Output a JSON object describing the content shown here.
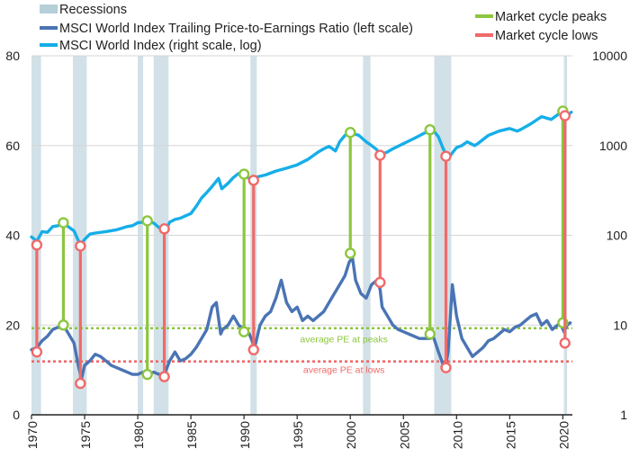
{
  "chart_data": {
    "type": "line",
    "title": "",
    "xlabel": "",
    "legend": {
      "placement": "top",
      "entries": [
        {
          "label": "Recessions",
          "color": "#b7cfd8"
        },
        {
          "label": "MSCI World Index Trailing Price-to-Earnings Ratio (left scale)",
          "color": "#4a74b4"
        },
        {
          "label": "MSCI World Index (right scale, log)",
          "color": "#16aee8"
        },
        {
          "label": "Market cycle peaks",
          "color": "#8cc63f"
        },
        {
          "label": "Market cycle lows",
          "color": "#f06a6a"
        }
      ]
    },
    "x_axis": {
      "range": [
        1970,
        2020.9
      ],
      "ticks": [
        "1970",
        "1975",
        "1980",
        "1985",
        "1990",
        "1995",
        "2000",
        "2005",
        "2010",
        "2015",
        "2020"
      ],
      "tick_values": [
        1970,
        1975,
        1980,
        1985,
        1990,
        1995,
        2000,
        2005,
        2010,
        2015,
        2020
      ]
    },
    "y_left": {
      "range": [
        0,
        80
      ],
      "ticks": [
        "0",
        "20",
        "40",
        "60",
        "80"
      ],
      "tick_values": [
        0,
        20,
        40,
        60,
        80
      ],
      "grid": true
    },
    "y_right": {
      "scale": "log",
      "range": [
        1,
        10000
      ],
      "ticks": [
        "1",
        "10",
        "100",
        "1000",
        "10000"
      ],
      "tick_values": [
        1,
        10,
        100,
        1000,
        10000
      ]
    },
    "recessions": [
      [
        1970.0,
        1970.9
      ],
      [
        1973.9,
        1975.2
      ],
      [
        1980.0,
        1980.5
      ],
      [
        1981.5,
        1982.9
      ],
      [
        1990.6,
        1991.2
      ],
      [
        2001.2,
        2001.9
      ],
      [
        2007.9,
        2009.5
      ],
      [
        2020.1,
        2020.4
      ]
    ],
    "series": [
      {
        "name": "MSCI World Index Trailing Price-to-Earnings Ratio (left scale)",
        "axis": "left",
        "color": "#4a74b4",
        "x": [
          1970.0,
          1970.5,
          1971.0,
          1971.5,
          1972.0,
          1972.5,
          1973.0,
          1973.5,
          1974.0,
          1974.4,
          1974.7,
          1975.0,
          1975.5,
          1976.0,
          1976.5,
          1977.0,
          1977.5,
          1978.0,
          1978.5,
          1979.0,
          1979.5,
          1980.0,
          1980.5,
          1981.0,
          1981.5,
          1982.0,
          1982.5,
          1983.0,
          1983.5,
          1984.0,
          1984.5,
          1985.0,
          1985.5,
          1986.0,
          1986.5,
          1987.0,
          1987.4,
          1987.8,
          1988.0,
          1988.5,
          1989.0,
          1989.5,
          1990.0,
          1990.5,
          1991.0,
          1991.5,
          1992.0,
          1992.5,
          1993.0,
          1993.5,
          1994.0,
          1994.5,
          1995.0,
          1995.5,
          1996.0,
          1996.5,
          1997.0,
          1997.5,
          1998.0,
          1998.5,
          1999.0,
          1999.5,
          1999.9,
          2000.2,
          2000.5,
          2001.0,
          2001.5,
          2002.0,
          2002.5,
          2002.8,
          2003.0,
          2003.5,
          2004.0,
          2004.5,
          2005.0,
          2005.5,
          2006.0,
          2006.5,
          2007.0,
          2007.5,
          2007.8,
          2008.3,
          2008.6,
          2008.9,
          2009.2,
          2009.6,
          2010.0,
          2010.5,
          2011.0,
          2011.5,
          2012.0,
          2012.5,
          2013.0,
          2013.5,
          2014.0,
          2014.5,
          2015.0,
          2015.5,
          2016.0,
          2016.5,
          2017.0,
          2017.5,
          2018.0,
          2018.5,
          2019.0,
          2019.5,
          2019.8,
          2020.1,
          2020.4,
          2020.7
        ],
        "y": [
          14.5,
          15.0,
          16.5,
          17.5,
          19.0,
          19.5,
          20.0,
          18.0,
          16.0,
          11.0,
          8.0,
          11.0,
          12.0,
          13.5,
          13.0,
          12.0,
          11.0,
          10.5,
          10.0,
          9.5,
          9.0,
          9.0,
          9.5,
          9.0,
          9.5,
          9.0,
          9.0,
          12.0,
          14.0,
          12.0,
          12.5,
          13.5,
          15.0,
          17.0,
          19.0,
          24.0,
          25.0,
          18.0,
          19.0,
          20.0,
          22.0,
          20.0,
          19.0,
          18.0,
          15.0,
          20.0,
          22.0,
          23.0,
          26.0,
          30.0,
          25.0,
          23.0,
          24.0,
          21.0,
          22.0,
          21.0,
          22.0,
          23.0,
          25.0,
          27.0,
          29.0,
          31.0,
          34.0,
          35.0,
          30.0,
          27.0,
          26.0,
          29.0,
          30.0,
          28.0,
          24.0,
          22.0,
          20.0,
          19.0,
          18.5,
          18.0,
          17.5,
          17.0,
          17.0,
          17.0,
          17.5,
          14.0,
          12.0,
          10.0,
          14.0,
          29.0,
          22.0,
          17.0,
          15.0,
          13.0,
          14.0,
          15.0,
          16.5,
          17.0,
          18.0,
          19.0,
          18.5,
          19.5,
          20.0,
          21.0,
          22.0,
          22.5,
          20.0,
          21.0,
          19.0,
          20.0,
          20.5,
          18.5,
          20.0,
          20.5
        ]
      },
      {
        "name": "MSCI World Index (right scale, log)",
        "axis": "right",
        "color": "#16aee8",
        "x": [
          1970.0,
          1970.5,
          1971.0,
          1971.5,
          1972.0,
          1972.5,
          1973.0,
          1973.5,
          1974.0,
          1974.6,
          1975.0,
          1975.5,
          1976.0,
          1977.0,
          1978.0,
          1978.5,
          1979.0,
          1979.5,
          1980.0,
          1980.5,
          1980.9,
          1981.5,
          1982.0,
          1982.7,
          1983.0,
          1983.5,
          1984.0,
          1984.5,
          1985.0,
          1985.5,
          1986.0,
          1986.5,
          1987.0,
          1987.6,
          1987.9,
          1988.5,
          1989.0,
          1989.5,
          1990.0,
          1990.7,
          1991.0,
          1991.5,
          1992.0,
          1993.0,
          1994.0,
          1995.0,
          1996.0,
          1997.0,
          1997.5,
          1998.0,
          1998.6,
          1999.0,
          1999.5,
          2000.0,
          2000.3,
          2000.8,
          2001.5,
          2002.0,
          2002.5,
          2002.8,
          2003.5,
          2004.0,
          2005.0,
          2006.0,
          2007.0,
          2007.8,
          2008.3,
          2008.7,
          2009.2,
          2009.5,
          2010.0,
          2010.5,
          2011.0,
          2011.7,
          2012.0,
          2013.0,
          2014.0,
          2015.0,
          2015.7,
          2016.0,
          2017.0,
          2018.0,
          2018.9,
          2019.5,
          2019.9,
          2020.2,
          2020.5,
          2020.8
        ],
        "y": [
          96,
          86,
          110,
          108,
          125,
          128,
          137,
          124,
          112,
          78,
          90,
          103,
          106,
          110,
          115,
          120,
          125,
          128,
          138,
          140,
          145,
          137,
          122,
          118,
          140,
          150,
          155,
          165,
          175,
          210,
          260,
          300,
          350,
          430,
          330,
          380,
          440,
          490,
          460,
          420,
          440,
          455,
          470,
          520,
          560,
          610,
          700,
          850,
          920,
          980,
          870,
          1100,
          1300,
          1400,
          1350,
          1300,
          1100,
          1000,
          900,
          780,
          850,
          920,
          1050,
          1200,
          1380,
          1480,
          1250,
          950,
          700,
          800,
          950,
          1000,
          1100,
          1000,
          1050,
          1300,
          1450,
          1550,
          1450,
          1500,
          1750,
          2100,
          1950,
          2200,
          2400,
          2100,
          2200,
          2350
        ]
      }
    ],
    "market_cycle_peaks": {
      "color": "#8cc63f",
      "events": [
        {
          "year": 1973.0,
          "index": 138,
          "pe": 20.0
        },
        {
          "year": 1980.9,
          "index": 145,
          "pe": 9.0
        },
        {
          "year": 1990.0,
          "index": 480,
          "pe": 18.5
        },
        {
          "year": 2000.0,
          "index": 1400,
          "pe": 36.0
        },
        {
          "year": 2007.5,
          "index": 1500,
          "pe": 18.0
        },
        {
          "year": 2020.0,
          "index": 2420,
          "pe": 20.5
        }
      ]
    },
    "market_cycle_lows": {
      "color": "#f06a6a",
      "events": [
        {
          "year": 1970.5,
          "index": 78,
          "pe": 14.0
        },
        {
          "year": 1974.6,
          "index": 76,
          "pe": 7.0
        },
        {
          "year": 1982.5,
          "index": 118,
          "pe": 8.5
        },
        {
          "year": 1990.9,
          "index": 410,
          "pe": 14.5
        },
        {
          "year": 2002.8,
          "index": 780,
          "pe": 29.5
        },
        {
          "year": 2009.0,
          "index": 760,
          "pe": 10.5
        },
        {
          "year": 2020.2,
          "index": 2150,
          "pe": 16.0
        }
      ]
    },
    "reference_lines": [
      {
        "label": "average PE at peaks",
        "value": 19.3,
        "color": "#8cc63f"
      },
      {
        "label": "average PE at lows",
        "value": 11.9,
        "color": "#f06a6a"
      }
    ]
  }
}
